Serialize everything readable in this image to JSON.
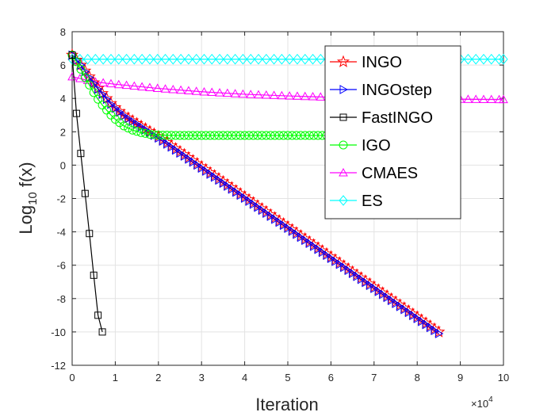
{
  "chart_data": {
    "type": "line",
    "title": "",
    "xlabel": "Iteration",
    "ylabel": "Log",
    "ylabel_sub": "10",
    "ylabel_tail": " f(x)",
    "x_multiplier_label": "×10",
    "x_multiplier_exp": "4",
    "xlim": [
      0,
      100000
    ],
    "ylim": [
      -12,
      8
    ],
    "x_ticks": [
      0,
      10000,
      20000,
      30000,
      40000,
      50000,
      60000,
      70000,
      80000,
      90000,
      100000
    ],
    "x_tick_labels": [
      "0",
      "1",
      "2",
      "3",
      "4",
      "5",
      "6",
      "7",
      "8",
      "9",
      "10"
    ],
    "y_ticks": [
      -12,
      -10,
      -8,
      -6,
      -4,
      -2,
      0,
      2,
      4,
      6,
      8
    ],
    "y_tick_labels": [
      "-12",
      "-10",
      "-8",
      "-6",
      "-4",
      "-2",
      "0",
      "2",
      "4",
      "6",
      "8"
    ],
    "grid": true,
    "legend_position": "top-right",
    "series": [
      {
        "name": "INGO",
        "color": "#ff0000",
        "marker": "star",
        "x": [
          0,
          1000,
          2000,
          3000,
          4000,
          5000,
          6000,
          7000,
          8000,
          9000,
          10000,
          12000,
          15000,
          20000,
          85000
        ],
        "y": [
          6.6,
          6.3,
          6.0,
          5.65,
          5.3,
          4.95,
          4.6,
          4.3,
          4.0,
          3.7,
          3.45,
          3.0,
          2.5,
          1.72,
          -10.0
        ]
      },
      {
        "name": "INGOstep",
        "color": "#0000ff",
        "marker": "triangle-right",
        "x": [
          0,
          1000,
          2000,
          3000,
          4000,
          5000,
          6000,
          7000,
          8000,
          9000,
          10000,
          12000,
          15000,
          20000,
          85000
        ],
        "y": [
          6.6,
          6.3,
          6.0,
          5.6,
          5.25,
          4.9,
          4.55,
          4.25,
          3.95,
          3.65,
          3.4,
          2.95,
          2.45,
          1.62,
          -10.1
        ]
      },
      {
        "name": "FastINGO",
        "color": "#000000",
        "marker": "square",
        "x": [
          0,
          1000,
          2000,
          3000,
          4000,
          5000,
          6000,
          7000
        ],
        "y": [
          6.6,
          3.1,
          0.7,
          -1.7,
          -4.1,
          -6.6,
          -9.0,
          -10.0
        ]
      },
      {
        "name": "IGO",
        "color": "#00ff00",
        "marker": "circle",
        "x": [
          0,
          1000,
          2000,
          3000,
          4000,
          5000,
          6000,
          7000,
          8000,
          9000,
          10000,
          12000,
          14000,
          16000,
          18000,
          20000,
          25000,
          60000
        ],
        "y": [
          6.6,
          6.2,
          5.75,
          5.25,
          4.8,
          4.35,
          3.95,
          3.6,
          3.3,
          3.0,
          2.75,
          2.35,
          2.1,
          1.95,
          1.85,
          1.8,
          1.78,
          1.78
        ]
      },
      {
        "name": "CMAES",
        "color": "#ff00ff",
        "marker": "triangle-up",
        "x": [
          0,
          5000,
          10000,
          20000,
          30000,
          40000,
          50000,
          60000,
          70000,
          80000,
          90000,
          100000
        ],
        "y": [
          5.3,
          5.0,
          4.85,
          4.6,
          4.4,
          4.25,
          4.15,
          4.07,
          4.02,
          3.98,
          3.95,
          3.93
        ]
      },
      {
        "name": "ES",
        "color": "#00ffff",
        "marker": "diamond",
        "x": [
          0,
          5000,
          10000,
          20000,
          40000,
          60000,
          80000,
          100000
        ],
        "y": [
          6.35,
          6.35,
          6.35,
          6.35,
          6.35,
          6.35,
          6.35,
          6.35
        ]
      }
    ]
  }
}
